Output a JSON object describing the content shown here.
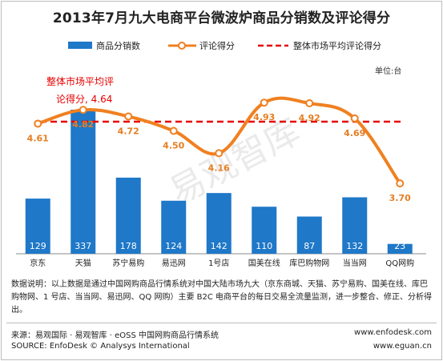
{
  "title": "2013年7月九大电商平台微波炉商品分销数及评论得分",
  "unit_label": "单位:台",
  "watermark": "易观智库",
  "average_annotation": {
    "line1": "整体市场平均评",
    "line2": "论得分, 4.64"
  },
  "note": "数据说明：以上数据是通过中国网购商品行情系统对中国大陆市场九大（京东商城、天猫、苏宁易购、国美在线、库巴购物网、1 号店、当当网、易迅网、QQ 网购）主要 B2C 电商平台的每日交易全流量监测，进一步整合、修正、分析得出。",
  "source_cn": "来源：易观国际 · 易观智库 · eOSS 中国网购商品行情系统",
  "source_en": "SOURCE: EnfoDesk © Analysys International",
  "url1": "www.enfodesk.com",
  "url2": "www.eguan.cn",
  "colors": {
    "bar": "#1f78c8",
    "line": "#f08020",
    "avg": "#e60000",
    "score_label": "#e67e22"
  },
  "chart_data": {
    "type": "bar",
    "categories": [
      "京东",
      "天猫",
      "苏宁易购",
      "易迅网",
      "1号店",
      "国美在线",
      "库巴购物网",
      "当当网",
      "QQ网购"
    ],
    "series": [
      {
        "name": "商品分销数",
        "type": "bar",
        "values": [
          129,
          337,
          178,
          124,
          142,
          110,
          87,
          132,
          23
        ]
      },
      {
        "name": "评论得分",
        "type": "line",
        "values": [
          4.61,
          4.82,
          4.72,
          4.5,
          4.16,
          4.93,
          4.92,
          4.69,
          3.7
        ],
        "labels": [
          "4.61",
          "4.82",
          "4.72",
          "4.50",
          "4.16",
          "4.93",
          "4.92",
          "4.69",
          "3.70"
        ]
      },
      {
        "name": "整体市场平均评论得分",
        "type": "reference-line",
        "value": 4.64
      }
    ],
    "legend": [
      "商品分销数",
      "评论得分",
      "整体市场平均评论得分"
    ],
    "legend_position": "top",
    "grid": false
  }
}
